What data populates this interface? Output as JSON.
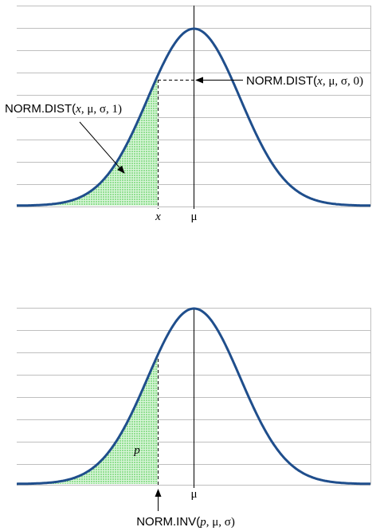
{
  "top_panel": {
    "label_pdf": [
      "NORM.DIST(",
      "x",
      ", μ, σ, 0)"
    ],
    "label_cdf": [
      "NORM.DIST(",
      "x",
      ", μ, σ, 1)"
    ],
    "tick_x": "x",
    "tick_mu": "μ"
  },
  "bottom_panel": {
    "label_area": "p",
    "label_inv": [
      "NORM.INV(",
      "p",
      ", μ, σ)"
    ],
    "tick_mu": "μ"
  },
  "colors": {
    "curve": "#1f4e8c",
    "fill": "#7ed67e",
    "grid": "#bfbfbf"
  }
}
